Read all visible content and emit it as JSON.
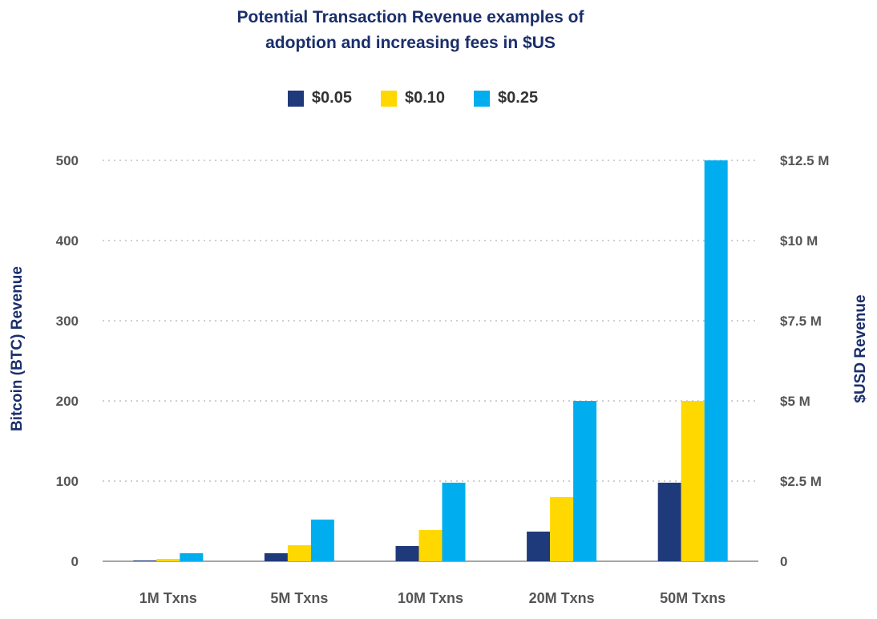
{
  "colors": {
    "title": "#1a2e6b",
    "series": [
      "#1f3a7a",
      "#ffd800",
      "#00aeef"
    ],
    "grid": "#bfbfbf",
    "axis": "#888888"
  },
  "chart_data": {
    "type": "bar",
    "title_lines": [
      "Potential Transaction Revenue examples of",
      "adoption and increasing fees in $US"
    ],
    "categories": [
      "1M Txns",
      "5M Txns",
      "10M Txns",
      "20M Txns",
      "50M Txns"
    ],
    "series": [
      {
        "name": "$0.05",
        "values": [
          1,
          10,
          19,
          37,
          98
        ]
      },
      {
        "name": "$0.10",
        "values": [
          3,
          20,
          39,
          80,
          200
        ]
      },
      {
        "name": "$0.25",
        "values": [
          10,
          52,
          98,
          200,
          500
        ]
      }
    ],
    "ylabel_left": "Bitcoin (BTC) Revenue",
    "ylabel_right": "$USD Revenue",
    "ylim": [
      0,
      500
    ],
    "y_ticks_left": [
      "0",
      "100",
      "200",
      "300",
      "400",
      "500"
    ],
    "y_ticks_right": [
      "0",
      "$2.5 M",
      "$5 M",
      "$7.5 M",
      "$10 M",
      "$12.5 M"
    ],
    "legend_position": "top-center",
    "grid": true
  }
}
